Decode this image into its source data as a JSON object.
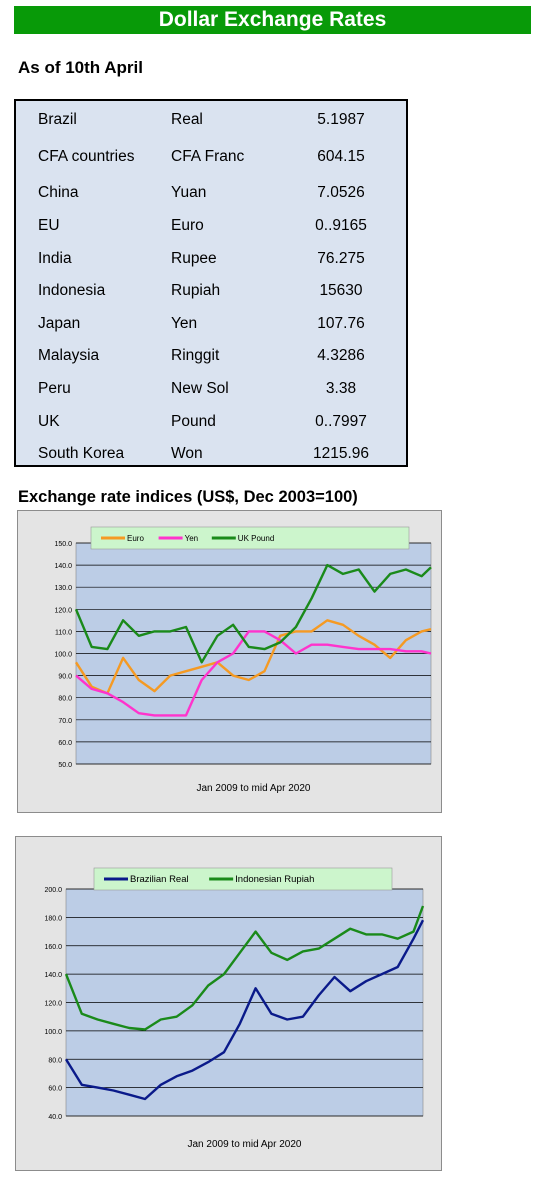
{
  "header": {
    "title": "Dollar Exchange Rates",
    "as_of": "As of 10th April"
  },
  "rates": [
    {
      "country": "Brazil",
      "currency": "Real",
      "rate": "5.1987"
    },
    {
      "country": "CFA countries",
      "currency": "CFA Franc",
      "rate": "604.15"
    },
    {
      "country": "China",
      "currency": "Yuan",
      "rate": "7.0526"
    },
    {
      "country": "EU",
      "currency": "Euro",
      "rate": "0..9165"
    },
    {
      "country": "India",
      "currency": "Rupee",
      "rate": "76.275"
    },
    {
      "country": "Indonesia",
      "currency": "Rupiah",
      "rate": "15630"
    },
    {
      "country": "Japan",
      "currency": "Yen",
      "rate": "107.76"
    },
    {
      "country": "Malaysia",
      "currency": "Ringgit",
      "rate": "4.3286"
    },
    {
      "country": "Peru",
      "currency": "New Sol",
      "rate": "3.38"
    },
    {
      "country": "UK",
      "currency": "Pound",
      "rate": "0..7997"
    },
    {
      "country": "South Korea",
      "currency": "Won",
      "rate": "1215.96"
    }
  ],
  "indices_title": "Exchange rate indices (US$, Dec 2003=100)",
  "chart_data": [
    {
      "type": "line",
      "xlabel": "Jan 2009  to mid Apr 2020",
      "ylim": [
        50,
        150
      ],
      "yticks": [
        "150.0",
        "140.0",
        "130.0",
        "120.0",
        "110.0",
        "100.0",
        "90.0",
        "80.0",
        "70.0",
        "60.0",
        "50.0"
      ],
      "grid": true,
      "legend_position": "top",
      "x": [
        2009.0,
        2009.5,
        2010.0,
        2010.5,
        2011.0,
        2011.5,
        2012.0,
        2012.5,
        2013.0,
        2013.5,
        2014.0,
        2014.5,
        2015.0,
        2015.5,
        2016.0,
        2016.5,
        2017.0,
        2017.5,
        2018.0,
        2018.5,
        2019.0,
        2019.5,
        2020.0,
        2020.3
      ],
      "series": [
        {
          "name": "Euro",
          "color": "#f59a23",
          "values": [
            96,
            85,
            82,
            98,
            88,
            83,
            90,
            92,
            94,
            96,
            90,
            88,
            92,
            108,
            110,
            110,
            115,
            113,
            108,
            104,
            98,
            106,
            110,
            111
          ]
        },
        {
          "name": "Yen",
          "color": "#ff33cc",
          "values": [
            90,
            84,
            82,
            78,
            73,
            72,
            72,
            72,
            88,
            96,
            100,
            110,
            110,
            106,
            100,
            104,
            104,
            103,
            102,
            102,
            102,
            101,
            101,
            100
          ]
        },
        {
          "name": "UK Pound",
          "color": "#1a8a1a",
          "values": [
            120,
            103,
            102,
            115,
            108,
            110,
            110,
            112,
            96,
            108,
            113,
            103,
            102,
            105,
            112,
            125,
            140,
            136,
            138,
            128,
            136,
            138,
            135,
            139
          ]
        }
      ]
    },
    {
      "type": "line",
      "xlabel": "Jan 2009  to mid Apr 2020",
      "ylim": [
        40,
        200
      ],
      "yticks": [
        "200.0",
        "180.0",
        "160.0",
        "140.0",
        "120.0",
        "100.0",
        "80.0",
        "60.0",
        "40.0"
      ],
      "grid": true,
      "legend_position": "top",
      "x": [
        2009.0,
        2009.5,
        2010.0,
        2010.5,
        2011.0,
        2011.5,
        2012.0,
        2012.5,
        2013.0,
        2013.5,
        2014.0,
        2014.5,
        2015.0,
        2015.5,
        2016.0,
        2016.5,
        2017.0,
        2017.5,
        2018.0,
        2018.5,
        2019.0,
        2019.5,
        2020.0,
        2020.3
      ],
      "series": [
        {
          "name": "Brazilian Real",
          "color": "#0a1a8a",
          "values": [
            80,
            62,
            60,
            58,
            55,
            52,
            62,
            68,
            72,
            78,
            85,
            105,
            130,
            112,
            108,
            110,
            125,
            138,
            128,
            135,
            140,
            145,
            165,
            178
          ]
        },
        {
          "name": "Indonesian Rupiah",
          "color": "#1a8a1a",
          "values": [
            140,
            112,
            108,
            105,
            102,
            101,
            108,
            110,
            118,
            132,
            140,
            155,
            170,
            155,
            150,
            156,
            158,
            165,
            172,
            168,
            168,
            165,
            170,
            188
          ]
        }
      ]
    }
  ]
}
